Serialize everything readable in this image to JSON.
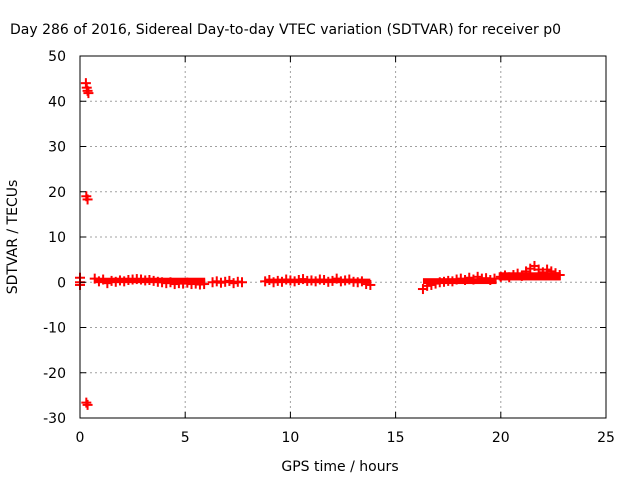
{
  "chart_data": {
    "type": "scatter",
    "title": "Day 286 of 2016, Sidereal Day-to-day VTEC variation (SDTVAR) for receiver p0",
    "xlabel": "GPS time / hours",
    "ylabel": "SDTVAR / TECUs",
    "xlim": [
      0,
      25
    ],
    "ylim": [
      -30,
      50
    ],
    "x_ticks": [
      "0",
      "5",
      "10",
      "15",
      "20",
      "25"
    ],
    "y_ticks": [
      "-30",
      "-20",
      "-10",
      "0",
      "10",
      "20",
      "30",
      "40",
      "50"
    ],
    "grid": true,
    "color": "#ff0000",
    "series": [
      {
        "points": [
          [
            0.0,
            1.0
          ],
          [
            0.0,
            0.0
          ],
          [
            0.0,
            -0.6
          ],
          [
            0.28,
            44.0
          ],
          [
            0.32,
            43.0
          ],
          [
            0.36,
            42.3
          ],
          [
            0.4,
            41.8
          ],
          [
            0.3,
            19.0
          ],
          [
            0.36,
            18.3
          ],
          [
            0.3,
            -26.6
          ],
          [
            0.36,
            -27.1
          ],
          [
            0.7,
            0.8
          ],
          [
            0.9,
            0.2
          ],
          [
            1.1,
            0.6
          ],
          [
            1.3,
            -0.2
          ],
          [
            1.5,
            0.3
          ],
          [
            1.7,
            0.1
          ],
          [
            1.9,
            0.4
          ],
          [
            2.1,
            0.2
          ],
          [
            2.3,
            0.5
          ],
          [
            2.5,
            0.6
          ],
          [
            2.7,
            0.7
          ],
          [
            2.9,
            0.6
          ],
          [
            3.1,
            0.4
          ],
          [
            3.3,
            0.5
          ],
          [
            3.5,
            0.3
          ],
          [
            3.7,
            0.1
          ],
          [
            3.9,
            0.0
          ],
          [
            4.1,
            -0.2
          ],
          [
            4.3,
            0.0
          ],
          [
            4.5,
            -0.4
          ],
          [
            4.7,
            -0.2
          ],
          [
            4.9,
            -0.3
          ],
          [
            5.1,
            -0.1
          ],
          [
            5.3,
            -0.4
          ],
          [
            5.5,
            -0.3
          ],
          [
            5.7,
            -0.5
          ],
          [
            5.9,
            -0.4
          ],
          [
            6.3,
            0.0
          ],
          [
            6.5,
            0.2
          ],
          [
            6.7,
            -0.1
          ],
          [
            6.9,
            0.1
          ],
          [
            7.1,
            0.3
          ],
          [
            7.3,
            -0.2
          ],
          [
            7.5,
            0.1
          ],
          [
            7.7,
            0.0
          ],
          [
            8.8,
            0.2
          ],
          [
            9.0,
            0.5
          ],
          [
            9.2,
            0.0
          ],
          [
            9.4,
            0.3
          ],
          [
            9.6,
            0.1
          ],
          [
            9.8,
            0.6
          ],
          [
            10.0,
            0.4
          ],
          [
            10.2,
            0.2
          ],
          [
            10.4,
            0.5
          ],
          [
            10.6,
            0.7
          ],
          [
            10.8,
            0.3
          ],
          [
            11.0,
            0.4
          ],
          [
            11.2,
            0.2
          ],
          [
            11.4,
            0.6
          ],
          [
            11.6,
            0.5
          ],
          [
            11.8,
            0.1
          ],
          [
            12.0,
            0.3
          ],
          [
            12.2,
            0.8
          ],
          [
            12.4,
            0.2
          ],
          [
            12.6,
            0.4
          ],
          [
            12.8,
            0.6
          ],
          [
            13.0,
            0.1
          ],
          [
            13.2,
            0.0
          ],
          [
            13.4,
            0.2
          ],
          [
            13.6,
            -0.4
          ],
          [
            13.8,
            -0.6
          ],
          [
            16.3,
            -1.5
          ],
          [
            16.5,
            -0.8
          ],
          [
            16.7,
            -0.6
          ],
          [
            16.9,
            -0.3
          ],
          [
            17.1,
            0.0
          ],
          [
            17.3,
            0.1
          ],
          [
            17.5,
            0.3
          ],
          [
            17.7,
            0.2
          ],
          [
            17.9,
            0.6
          ],
          [
            18.1,
            0.8
          ],
          [
            18.3,
            0.5
          ],
          [
            18.5,
            1.0
          ],
          [
            18.7,
            0.6
          ],
          [
            18.9,
            1.2
          ],
          [
            19.1,
            0.8
          ],
          [
            19.3,
            0.9
          ],
          [
            19.5,
            0.5
          ],
          [
            19.7,
            0.8
          ],
          [
            20.0,
            1.2
          ],
          [
            20.2,
            1.5
          ],
          [
            20.4,
            1.1
          ],
          [
            20.6,
            1.6
          ],
          [
            20.8,
            1.9
          ],
          [
            21.0,
            1.4
          ],
          [
            21.2,
            2.4
          ],
          [
            21.4,
            3.0
          ],
          [
            21.6,
            3.6
          ],
          [
            21.8,
            2.8
          ],
          [
            22.0,
            2.2
          ],
          [
            22.2,
            2.8
          ],
          [
            22.4,
            2.4
          ],
          [
            22.6,
            2.0
          ],
          [
            22.8,
            1.6
          ]
        ],
        "bands": [
          [
            0.7,
            5.95,
            -0.2,
            1.0
          ],
          [
            6.3,
            7.75,
            -0.2,
            0.35
          ],
          [
            8.8,
            13.8,
            -0.2,
            0.8
          ],
          [
            16.3,
            19.8,
            -0.4,
            0.9
          ],
          [
            19.9,
            22.85,
            0.4,
            2.2
          ]
        ]
      }
    ]
  }
}
